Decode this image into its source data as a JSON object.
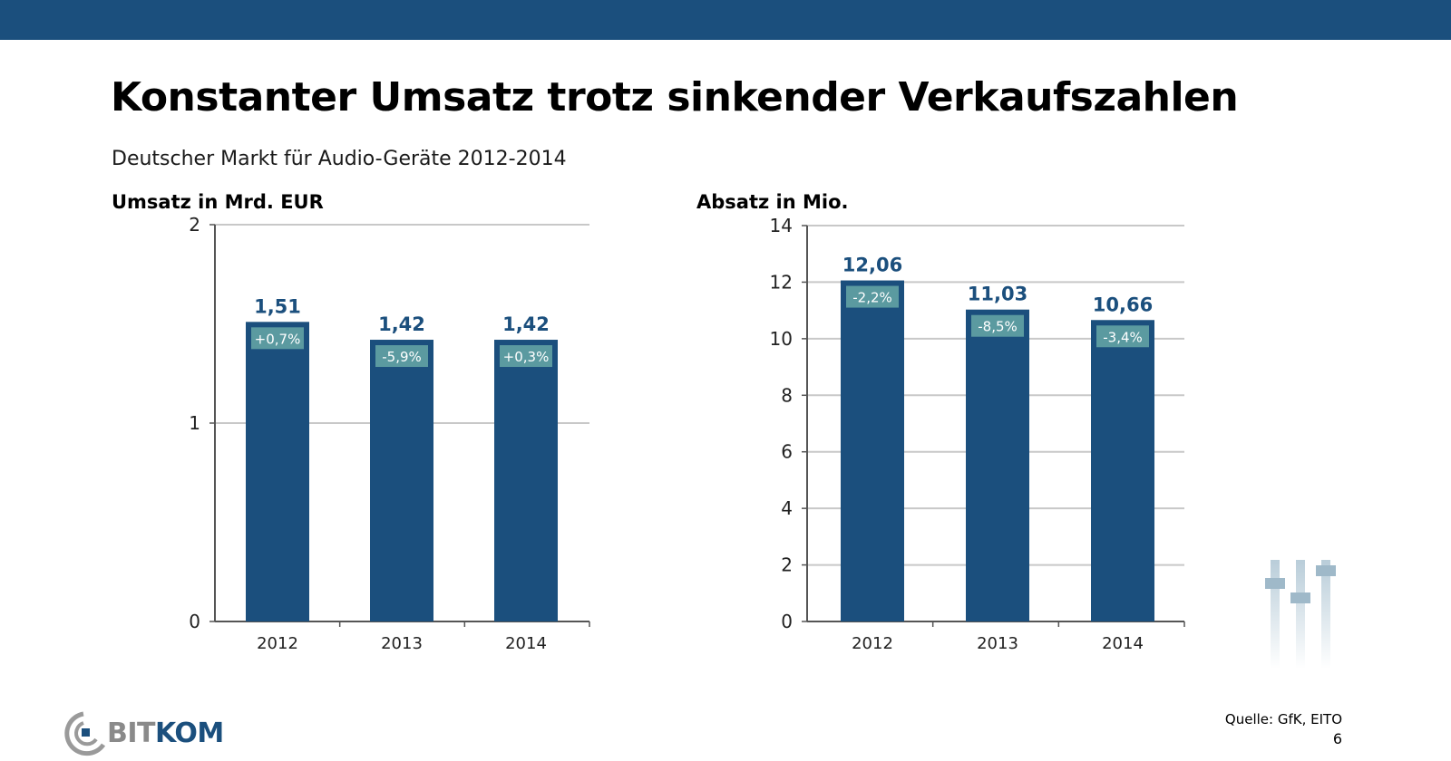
{
  "slide": {
    "title": "Konstanter Umsatz trotz sinkender Verkaufszahlen",
    "subtitle": "Deutscher Markt für Audio-Geräte 2012-2014",
    "source": "Quelle: GfK, EITO",
    "page_number": "6",
    "logo": {
      "bit": "BIT",
      "kom": "KOM"
    },
    "colors": {
      "bar": "#1b4f7d",
      "badge": "#5b9aa0",
      "topbar": "#1b4f7d",
      "grid": "#c8c8c8"
    }
  },
  "chart_data": [
    {
      "type": "bar",
      "title": "Umsatz in Mrd. EUR",
      "categories": [
        "2012",
        "2013",
        "2014"
      ],
      "values": [
        1.51,
        1.42,
        1.42
      ],
      "value_labels": [
        "1,51",
        "1,42",
        "1,42"
      ],
      "change_labels": [
        "+0,7%",
        "-5,9%",
        "+0,3%"
      ],
      "ylim": [
        0,
        2
      ],
      "yticks": [
        0,
        1,
        2
      ],
      "ytick_labels": [
        "0",
        "1",
        "2"
      ],
      "grid": true
    },
    {
      "type": "bar",
      "title": "Absatz in Mio.",
      "categories": [
        "2012",
        "2013",
        "2014"
      ],
      "values": [
        12.06,
        11.03,
        10.66
      ],
      "value_labels": [
        "12,06",
        "11,03",
        "10,66"
      ],
      "change_labels": [
        "-2,2%",
        "-8,5%",
        "-3,4%"
      ],
      "ylim": [
        0,
        14
      ],
      "yticks": [
        0,
        2,
        4,
        6,
        8,
        10,
        12,
        14
      ],
      "ytick_labels": [
        "0",
        "2",
        "4",
        "6",
        "8",
        "10",
        "12",
        "14"
      ],
      "grid": true
    }
  ]
}
